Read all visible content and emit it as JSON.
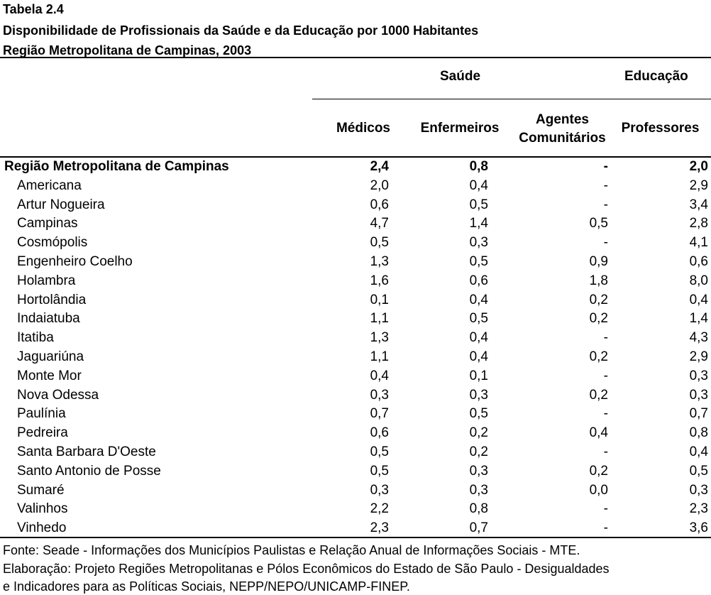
{
  "title": {
    "line1": "Tabela 2.4",
    "line2": "Disponibilidade de Profissionais da Saúde e da Educação por 1000 Habitantes",
    "line3": "Região Metropolitana de Campinas, 2003"
  },
  "header": {
    "group_saude": "Saúde",
    "group_educacao": "Educação",
    "col_medicos": "Médicos",
    "col_enfermeiros": "Enfermeiros",
    "col_agentes_line1": "Agentes",
    "col_agentes_line2": "Comunitários",
    "col_professores": "Professores"
  },
  "rows": [
    {
      "name": "Região Metropolitana de Campinas",
      "medicos": "2,4",
      "enfermeiros": "0,8",
      "agentes": "-",
      "professores": "2,0",
      "total": true
    },
    {
      "name": "Americana",
      "medicos": "2,0",
      "enfermeiros": "0,4",
      "agentes": "-",
      "professores": "2,9"
    },
    {
      "name": "Artur Nogueira",
      "medicos": "0,6",
      "enfermeiros": "0,5",
      "agentes": "-",
      "professores": "3,4"
    },
    {
      "name": "Campinas",
      "medicos": "4,7",
      "enfermeiros": "1,4",
      "agentes": "0,5",
      "professores": "2,8"
    },
    {
      "name": "Cosmópolis",
      "medicos": "0,5",
      "enfermeiros": "0,3",
      "agentes": "-",
      "professores": "4,1"
    },
    {
      "name": "Engenheiro Coelho",
      "medicos": "1,3",
      "enfermeiros": "0,5",
      "agentes": "0,9",
      "professores": "0,6"
    },
    {
      "name": "Holambra",
      "medicos": "1,6",
      "enfermeiros": "0,6",
      "agentes": "1,8",
      "professores": "8,0"
    },
    {
      "name": "Hortolândia",
      "medicos": "0,1",
      "enfermeiros": "0,4",
      "agentes": "0,2",
      "professores": "0,4"
    },
    {
      "name": "Indaiatuba",
      "medicos": "1,1",
      "enfermeiros": "0,5",
      "agentes": "0,2",
      "professores": "1,4"
    },
    {
      "name": "Itatiba",
      "medicos": "1,3",
      "enfermeiros": "0,4",
      "agentes": "-",
      "professores": "4,3"
    },
    {
      "name": "Jaguariúna",
      "medicos": "1,1",
      "enfermeiros": "0,4",
      "agentes": "0,2",
      "professores": "2,9"
    },
    {
      "name": "Monte Mor",
      "medicos": "0,4",
      "enfermeiros": "0,1",
      "agentes": "-",
      "professores": "0,3"
    },
    {
      "name": "Nova Odessa",
      "medicos": "0,3",
      "enfermeiros": "0,3",
      "agentes": "0,2",
      "professores": "0,3"
    },
    {
      "name": "Paulínia",
      "medicos": "0,7",
      "enfermeiros": "0,5",
      "agentes": "-",
      "professores": "0,7"
    },
    {
      "name": "Pedreira",
      "medicos": "0,6",
      "enfermeiros": "0,2",
      "agentes": "0,4",
      "professores": "0,8"
    },
    {
      "name": "Santa Barbara D'Oeste",
      "medicos": "0,5",
      "enfermeiros": "0,2",
      "agentes": "-",
      "professores": "0,4"
    },
    {
      "name": "Santo Antonio de Posse",
      "medicos": "0,5",
      "enfermeiros": "0,3",
      "agentes": "0,2",
      "professores": "0,5"
    },
    {
      "name": "Sumaré",
      "medicos": "0,3",
      "enfermeiros": "0,3",
      "agentes": "0,0",
      "professores": "0,3"
    },
    {
      "name": "Valinhos",
      "medicos": "2,2",
      "enfermeiros": "0,8",
      "agentes": "-",
      "professores": "2,3"
    },
    {
      "name": "Vinhedo",
      "medicos": "2,3",
      "enfermeiros": "0,7",
      "agentes": "-",
      "professores": "3,6"
    }
  ],
  "footer": {
    "source": "Fonte: Seade - Informações dos Municípios Paulistas e Relação Anual de Informações Sociais - MTE.",
    "elab_line1": "Elaboração: Projeto Regiões Metropolitanas e Pólos Econômicos do Estado de São Paulo - Desigualdades",
    "elab_line2": "e Indicadores para as Políticas Sociais, NEPP/NEPO/UNICAMP-FINEP."
  }
}
